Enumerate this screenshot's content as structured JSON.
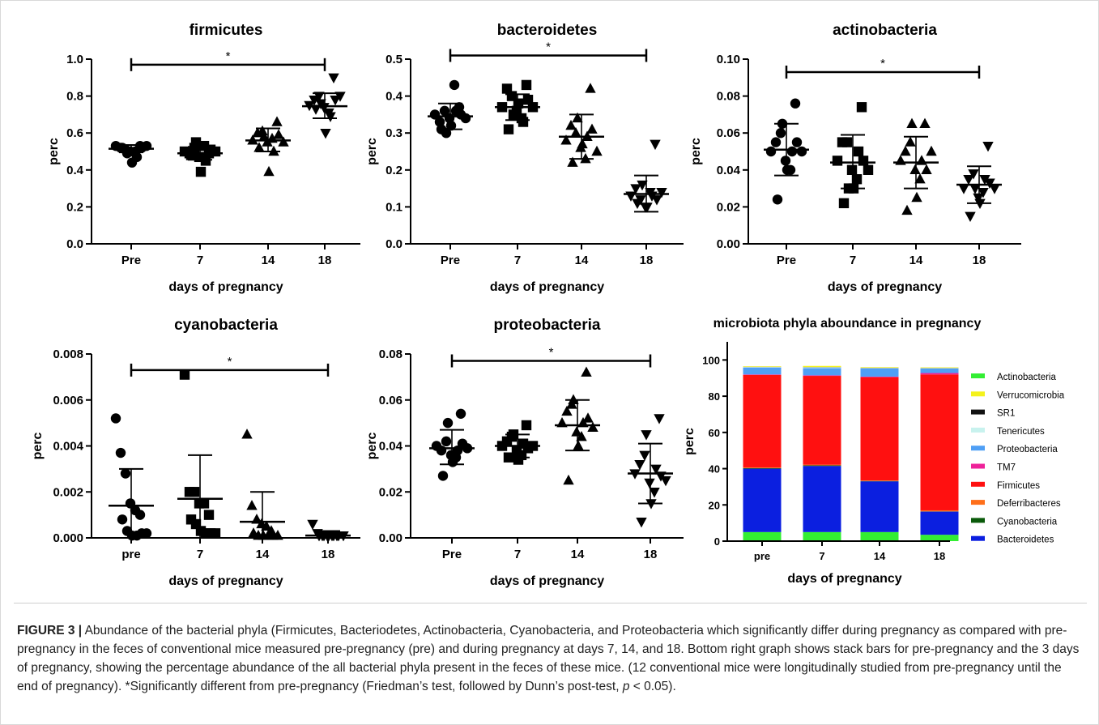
{
  "caption": {
    "label": "FIGURE 3 |",
    "text": "Abundance of the bacterial phyla (Firmicutes, Bacteriodetes, Actinobacteria, Cyanobacteria, and Proteobacteria which significantly differ during pregnancy as compared with pre-pregnancy in the feces of conventional mice measured pre-pregnancy (pre) and during pregnancy at days 7, 14, and 18. Bottom right graph shows stack bars for pre-pregnancy and the 3 days of pregnancy, showing the percentage abundance of the all bacterial phyla present in the feces of these mice. (12 conventional mice were longitudinally studied from pre-pregnancy until the end of pregnancy). *Significantly different from pre-pregnancy (Friedman’s test, followed by Dunn’s post-test, ",
    "p_symbol": "p",
    "text_end": " < 0.05)."
  },
  "chart_data": [
    {
      "type": "scatter",
      "title": "firmicutes",
      "xlabel": "days of pregnancy",
      "ylabel": "perc",
      "categories": [
        "Pre",
        "7",
        "14",
        "18"
      ],
      "ylim": [
        0,
        1.0
      ],
      "yticks": [
        "0.0",
        "0.2",
        "0.4",
        "0.6",
        "0.8",
        "1.0"
      ],
      "marker_shapes": [
        "circle",
        "square",
        "triangle-up",
        "triangle-down"
      ],
      "series": [
        {
          "points": [
            0.53,
            0.52,
            0.51,
            0.5,
            0.5,
            0.53,
            0.52,
            0.49,
            0.44,
            0.47,
            0.52,
            0.53
          ],
          "mean": 0.515,
          "sd_low": 0.495,
          "sd_high": 0.535
        },
        {
          "points": [
            0.5,
            0.49,
            0.52,
            0.47,
            0.53,
            0.49,
            0.48,
            0.55,
            0.39,
            0.45,
            0.51,
            0.5
          ],
          "mean": 0.49,
          "sd_low": 0.455,
          "sd_high": 0.525
        },
        {
          "points": [
            0.56,
            0.6,
            0.61,
            0.55,
            0.57,
            0.66,
            0.52,
            0.58,
            0.39,
            0.5,
            0.59,
            0.55
          ],
          "mean": 0.56,
          "sd_low": 0.5,
          "sd_high": 0.625
        },
        {
          "points": [
            0.75,
            0.78,
            0.8,
            0.74,
            0.71,
            0.9,
            0.73,
            0.76,
            0.6,
            0.69,
            0.78,
            0.8
          ],
          "mean": 0.745,
          "sd_low": 0.68,
          "sd_high": 0.815
        }
      ],
      "significance": {
        "from": 0,
        "to": 3,
        "label": "*",
        "y": 0.97
      }
    },
    {
      "type": "scatter",
      "title": "bacteroidetes",
      "xlabel": "days of pregnancy",
      "ylabel": "perc",
      "categories": [
        "Pre",
        "7",
        "14",
        "18"
      ],
      "ylim": [
        0,
        0.5
      ],
      "yticks": [
        "0.0",
        "0.1",
        "0.2",
        "0.3",
        "0.4",
        "0.5"
      ],
      "marker_shapes": [
        "circle",
        "square",
        "triangle-up",
        "triangle-down"
      ],
      "series": [
        {
          "points": [
            0.35,
            0.33,
            0.36,
            0.34,
            0.43,
            0.37,
            0.31,
            0.3,
            0.32,
            0.36,
            0.35,
            0.34
          ],
          "mean": 0.345,
          "sd_low": 0.31,
          "sd_high": 0.38
        },
        {
          "points": [
            0.37,
            0.42,
            0.4,
            0.36,
            0.34,
            0.43,
            0.31,
            0.35,
            0.38,
            0.33,
            0.39,
            0.37
          ],
          "mean": 0.37,
          "sd_low": 0.335,
          "sd_high": 0.405
        },
        {
          "points": [
            0.28,
            0.32,
            0.3,
            0.26,
            0.23,
            0.42,
            0.22,
            0.34,
            0.27,
            0.29,
            0.31,
            0.25
          ],
          "mean": 0.29,
          "sd_low": 0.23,
          "sd_high": 0.35
        },
        {
          "points": [
            0.13,
            0.15,
            0.12,
            0.1,
            0.14,
            0.27,
            0.11,
            0.16,
            0.1,
            0.13,
            0.12,
            0.14
          ],
          "mean": 0.135,
          "sd_low": 0.087,
          "sd_high": 0.185
        }
      ],
      "significance": {
        "from": 0,
        "to": 3,
        "label": "*",
        "y": 0.51
      }
    },
    {
      "type": "scatter",
      "title": "actinobacteria",
      "xlabel": "days of pregnancy",
      "ylabel": "perc",
      "categories": [
        "Pre",
        "7",
        "14",
        "18"
      ],
      "ylim": [
        0,
        0.1
      ],
      "yticks": [
        "0.00",
        "0.02",
        "0.04",
        "0.06",
        "0.08",
        "0.10"
      ],
      "marker_shapes": [
        "circle",
        "square",
        "triangle-up",
        "triangle-down"
      ],
      "series": [
        {
          "points": [
            0.05,
            0.055,
            0.06,
            0.045,
            0.04,
            0.076,
            0.024,
            0.065,
            0.04,
            0.05,
            0.055,
            0.05
          ],
          "mean": 0.051,
          "sd_low": 0.037,
          "sd_high": 0.065
        },
        {
          "points": [
            0.045,
            0.055,
            0.055,
            0.04,
            0.035,
            0.074,
            0.022,
            0.03,
            0.03,
            0.05,
            0.045,
            0.04
          ],
          "mean": 0.044,
          "sd_low": 0.03,
          "sd_high": 0.059
        },
        {
          "points": [
            0.045,
            0.05,
            0.055,
            0.04,
            0.035,
            0.065,
            0.018,
            0.065,
            0.025,
            0.045,
            0.04,
            0.05
          ],
          "mean": 0.044,
          "sd_low": 0.03,
          "sd_high": 0.058
        },
        {
          "points": [
            0.03,
            0.035,
            0.038,
            0.025,
            0.028,
            0.053,
            0.015,
            0.03,
            0.022,
            0.035,
            0.033,
            0.03
          ],
          "mean": 0.032,
          "sd_low": 0.022,
          "sd_high": 0.042
        }
      ],
      "significance": {
        "from": 0,
        "to": 3,
        "label": "*",
        "y": 0.093
      }
    },
    {
      "type": "scatter",
      "title": "cyanobacteria",
      "xlabel": "days of pregnancy",
      "ylabel": "perc",
      "categories": [
        "pre",
        "7",
        "14",
        "18"
      ],
      "ylim": [
        0,
        0.008
      ],
      "yticks": [
        "0.000",
        "0.002",
        "0.004",
        "0.006",
        "0.008"
      ],
      "marker_shapes": [
        "circle",
        "square",
        "triangle-up",
        "triangle-down"
      ],
      "series": [
        {
          "points": [
            0.0052,
            0.0037,
            0.0028,
            0.0015,
            0.0012,
            0.001,
            0.0008,
            0.0003,
            0.0001,
            0.0001,
            0.0002,
            0.0002
          ],
          "mean": 0.0014,
          "sd_low": 0.0,
          "sd_high": 0.003
        },
        {
          "points": [
            0.0071,
            0.002,
            0.002,
            0.0015,
            0.0015,
            0.001,
            0.0008,
            0.0006,
            0.0003,
            0.0002,
            0.0002,
            0.0002
          ],
          "mean": 0.0017,
          "sd_low": 0.0,
          "sd_high": 0.0036
        },
        {
          "points": [
            0.0045,
            0.0014,
            0.0008,
            0.0006,
            0.0005,
            0.0003,
            0.0002,
            0.0001,
            0.0001,
            0.0001,
            0.0001,
            0.0001
          ],
          "mean": 0.0007,
          "sd_low": 0.0,
          "sd_high": 0.002
        },
        {
          "points": [
            0.0006,
            0.0002,
            0.0001,
            0.0001,
            0.0001,
            0.0001,
            0.0001,
            0.0001,
            0.0001,
            0.0001,
            0.0001,
            0.0001
          ],
          "mean": 0.0001,
          "sd_low": 0.0,
          "sd_high": 0.0003
        }
      ],
      "significance": {
        "from": 0,
        "to": 3,
        "label": "*",
        "y": 0.0073
      }
    },
    {
      "type": "scatter",
      "title": "proteobacteria",
      "xlabel": "days of pregnancy",
      "ylabel": "perc",
      "categories": [
        "Pre",
        "7",
        "14",
        "18"
      ],
      "ylim": [
        0,
        0.08
      ],
      "yticks": [
        "0.00",
        "0.02",
        "0.04",
        "0.06",
        "0.08"
      ],
      "marker_shapes": [
        "circle",
        "square",
        "triangle-up",
        "triangle-down"
      ],
      "series": [
        {
          "points": [
            0.04,
            0.038,
            0.042,
            0.036,
            0.035,
            0.054,
            0.027,
            0.05,
            0.033,
            0.038,
            0.041,
            0.039
          ],
          "mean": 0.039,
          "sd_low": 0.032,
          "sd_high": 0.047
        },
        {
          "points": [
            0.04,
            0.042,
            0.044,
            0.038,
            0.036,
            0.049,
            0.035,
            0.045,
            0.034,
            0.041,
            0.039,
            0.04
          ],
          "mean": 0.04,
          "sd_low": 0.035,
          "sd_high": 0.045
        },
        {
          "points": [
            0.05,
            0.055,
            0.058,
            0.046,
            0.044,
            0.072,
            0.025,
            0.06,
            0.04,
            0.05,
            0.052,
            0.048
          ],
          "mean": 0.049,
          "sd_low": 0.038,
          "sd_high": 0.06
        },
        {
          "points": [
            0.028,
            0.032,
            0.036,
            0.024,
            0.02,
            0.052,
            0.007,
            0.045,
            0.015,
            0.03,
            0.027,
            0.025
          ],
          "mean": 0.028,
          "sd_low": 0.015,
          "sd_high": 0.041
        }
      ],
      "significance": {
        "from": 0,
        "to": 3,
        "label": "*",
        "y": 0.077
      }
    },
    {
      "type": "bar",
      "stacked": true,
      "title": "microbiota phyla aboundance in pregnancy",
      "xlabel": "days of pregnancy",
      "ylabel": "perc",
      "categories": [
        "pre",
        "7",
        "14",
        "18"
      ],
      "ylim": [
        0,
        110
      ],
      "yticks": [
        "0",
        "20",
        "40",
        "60",
        "80",
        "100"
      ],
      "legend_placement": "right",
      "legend_order": [
        "Actinobacteria",
        "Verrucomicrobia",
        "SR1",
        "Tenericutes",
        "Proteobacteria",
        "TM7",
        "Firmicutes",
        "Deferribacteres",
        "Cyanobacteria",
        "Bacteroidetes"
      ],
      "series": [
        {
          "name": "Actinobacteria",
          "color": "#33ee33",
          "values": [
            5,
            5,
            5,
            3.5
          ]
        },
        {
          "name": "Bacteroidetes",
          "color": "#0b1fe0",
          "values": [
            35,
            36.5,
            28,
            12.8
          ]
        },
        {
          "name": "Cyanobacteria",
          "color": "#0a5a0a",
          "values": [
            0.3,
            0.3,
            0.2,
            0.1
          ]
        },
        {
          "name": "Deferribacteres",
          "color": "#ff6f1a",
          "values": [
            0.4,
            0.4,
            0.3,
            0.6
          ]
        },
        {
          "name": "Firmicutes",
          "color": "#ff1010",
          "values": [
            51,
            49,
            57,
            75
          ]
        },
        {
          "name": "TM7",
          "color": "#ee2299",
          "values": [
            0.3,
            0.3,
            0.3,
            0.8
          ]
        },
        {
          "name": "Proteobacteria",
          "color": "#4f9ff5",
          "values": [
            3.8,
            4,
            4.5,
            2.5
          ]
        },
        {
          "name": "Tenericutes",
          "color": "#c8f2ee",
          "values": [
            0.3,
            0.5,
            0.3,
            0.2
          ]
        },
        {
          "name": "SR1",
          "color": "#111111",
          "values": [
            0.1,
            0.1,
            0.1,
            0.1
          ]
        },
        {
          "name": "Verrucomicrobia",
          "color": "#f4f21c",
          "values": [
            0.3,
            0.6,
            0.3,
            0.3
          ]
        }
      ]
    }
  ]
}
